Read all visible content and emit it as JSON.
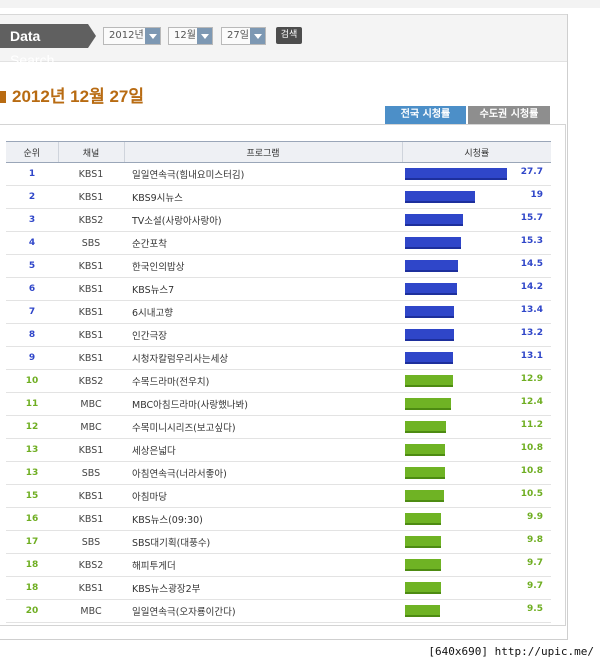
{
  "search": {
    "label_bold": "Data",
    "label_normal": "Search",
    "year": "2012년",
    "month": "12월",
    "day": "27일",
    "button": "검색"
  },
  "date_title": "2012년 12월 27일",
  "tabs": {
    "national": "전국 시청률",
    "capital": "수도권 시청률"
  },
  "table": {
    "headers": {
      "rank": "순위",
      "channel": "채널",
      "program": "프로그램",
      "rating": "시청률"
    },
    "rows": [
      {
        "rank": "1",
        "channel": "KBS1",
        "program": "일일연속극(힘내요미스터김)",
        "rating": "27.7",
        "value": 27.7,
        "color": "blue"
      },
      {
        "rank": "2",
        "channel": "KBS1",
        "program": "KBS9시뉴스",
        "rating": "19",
        "value": 19,
        "color": "blue"
      },
      {
        "rank": "3",
        "channel": "KBS2",
        "program": "TV소설(사랑아사랑아)",
        "rating": "15.7",
        "value": 15.7,
        "color": "blue"
      },
      {
        "rank": "4",
        "channel": "SBS",
        "program": "순간포착",
        "rating": "15.3",
        "value": 15.3,
        "color": "blue"
      },
      {
        "rank": "5",
        "channel": "KBS1",
        "program": "한국인의밥상",
        "rating": "14.5",
        "value": 14.5,
        "color": "blue"
      },
      {
        "rank": "6",
        "channel": "KBS1",
        "program": "KBS뉴스7",
        "rating": "14.2",
        "value": 14.2,
        "color": "blue"
      },
      {
        "rank": "7",
        "channel": "KBS1",
        "program": "6시내고향",
        "rating": "13.4",
        "value": 13.4,
        "color": "blue"
      },
      {
        "rank": "8",
        "channel": "KBS1",
        "program": "인간극장",
        "rating": "13.2",
        "value": 13.2,
        "color": "blue"
      },
      {
        "rank": "9",
        "channel": "KBS1",
        "program": "시청자칼럼우리사는세상",
        "rating": "13.1",
        "value": 13.1,
        "color": "blue"
      },
      {
        "rank": "10",
        "channel": "KBS2",
        "program": "수목드라마(전우치)",
        "rating": "12.9",
        "value": 12.9,
        "color": "green"
      },
      {
        "rank": "11",
        "channel": "MBC",
        "program": "MBC아침드라마(사랑했나봐)",
        "rating": "12.4",
        "value": 12.4,
        "color": "green"
      },
      {
        "rank": "12",
        "channel": "MBC",
        "program": "수목미니시리즈(보고싶다)",
        "rating": "11.2",
        "value": 11.2,
        "color": "green"
      },
      {
        "rank": "13",
        "channel": "KBS1",
        "program": "세상은넓다",
        "rating": "10.8",
        "value": 10.8,
        "color": "green"
      },
      {
        "rank": "13",
        "channel": "SBS",
        "program": "아침연속극(너라서좋아)",
        "rating": "10.8",
        "value": 10.8,
        "color": "green"
      },
      {
        "rank": "15",
        "channel": "KBS1",
        "program": "아침마당",
        "rating": "10.5",
        "value": 10.5,
        "color": "green"
      },
      {
        "rank": "16",
        "channel": "KBS1",
        "program": "KBS뉴스(09:30)",
        "rating": "9.9",
        "value": 9.9,
        "color": "green"
      },
      {
        "rank": "17",
        "channel": "SBS",
        "program": "SBS대기획(대풍수)",
        "rating": "9.8",
        "value": 9.8,
        "color": "green"
      },
      {
        "rank": "18",
        "channel": "KBS2",
        "program": "해피투게더",
        "rating": "9.7",
        "value": 9.7,
        "color": "green"
      },
      {
        "rank": "18",
        "channel": "KBS1",
        "program": "KBS뉴스광장2부",
        "rating": "9.7",
        "value": 9.7,
        "color": "green"
      },
      {
        "rank": "20",
        "channel": "MBC",
        "program": "일일연속극(오자룡이간다)",
        "rating": "9.5",
        "value": 9.5,
        "color": "green"
      }
    ]
  },
  "colors": {
    "blue": "#2f46c9",
    "green": "#6fb324",
    "title": "#b86b12"
  },
  "caption": "[640x690] http://upic.me/"
}
